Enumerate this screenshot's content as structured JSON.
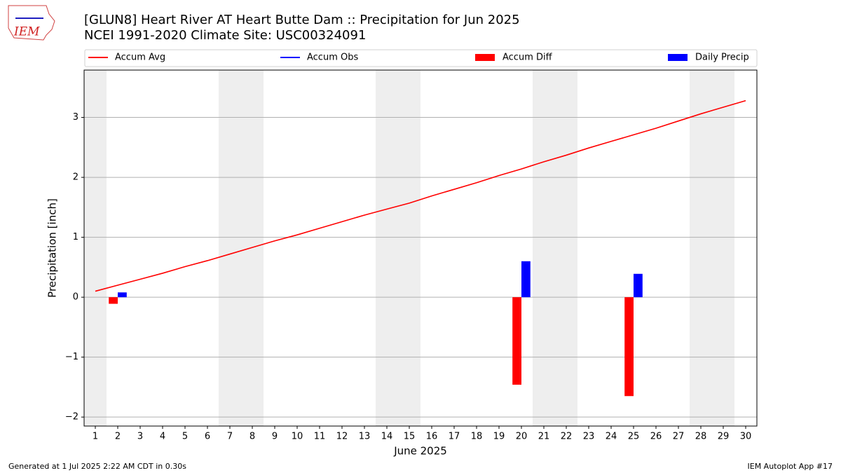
{
  "logo": "IEM",
  "footer": {
    "left": "Generated at 1 Jul 2025 2:22 AM CDT in 0.30s",
    "right": "IEM Autoplot App #17"
  },
  "chart_data": {
    "type": "combo",
    "title": "[GLUN8] Heart River  AT Heart Butte Dam :: Precipitation for Jun 2025",
    "subtitle": "NCEI 1991-2020 Climate Site: USC00324091",
    "y_label": "Precipitation [inch]",
    "x_label": "June 2025",
    "xlim": [
      0.5,
      30.5
    ],
    "xticks": [
      1,
      2,
      3,
      4,
      5,
      6,
      7,
      8,
      9,
      10,
      11,
      12,
      13,
      14,
      15,
      16,
      17,
      18,
      19,
      20,
      21,
      22,
      23,
      24,
      25,
      26,
      27,
      28,
      29,
      30
    ],
    "ylim": [
      -2.15,
      3.79
    ],
    "yticks": [
      {
        "value": -2,
        "label": "−2"
      },
      {
        "value": -1,
        "label": "−1"
      },
      0,
      1,
      2,
      3
    ],
    "grid": true,
    "series": [
      {
        "name": "Accum Avg",
        "type": "line",
        "color": "#ff0000",
        "x": [
          1,
          2,
          3,
          4,
          5,
          6,
          7,
          8,
          9,
          10,
          11,
          12,
          13,
          14,
          15,
          16,
          17,
          18,
          19,
          20,
          21,
          22,
          23,
          24,
          25,
          26,
          27,
          28,
          29,
          30
        ],
        "values": [
          0.1,
          0.2,
          0.3,
          0.4,
          0.51,
          0.61,
          0.72,
          0.83,
          0.94,
          1.04,
          1.15,
          1.26,
          1.37,
          1.47,
          1.57,
          1.69,
          1.8,
          1.91,
          2.03,
          2.14,
          2.26,
          2.37,
          2.49,
          2.6,
          2.71,
          2.82,
          2.94,
          3.06,
          3.17,
          3.28
        ]
      },
      {
        "name": "Accum Obs",
        "type": "line",
        "color": "#0000ff",
        "x": [],
        "values": []
      },
      {
        "name": "Accum Diff",
        "type": "bar",
        "color": "#ff0000",
        "x": [
          2,
          20,
          25
        ],
        "values": [
          -0.11,
          -1.46,
          -1.65
        ]
      },
      {
        "name": "Daily Precip",
        "type": "bar",
        "color": "#0000ff",
        "x": [
          2,
          20,
          25
        ],
        "values": [
          0.08,
          0.6,
          0.39
        ]
      }
    ]
  }
}
